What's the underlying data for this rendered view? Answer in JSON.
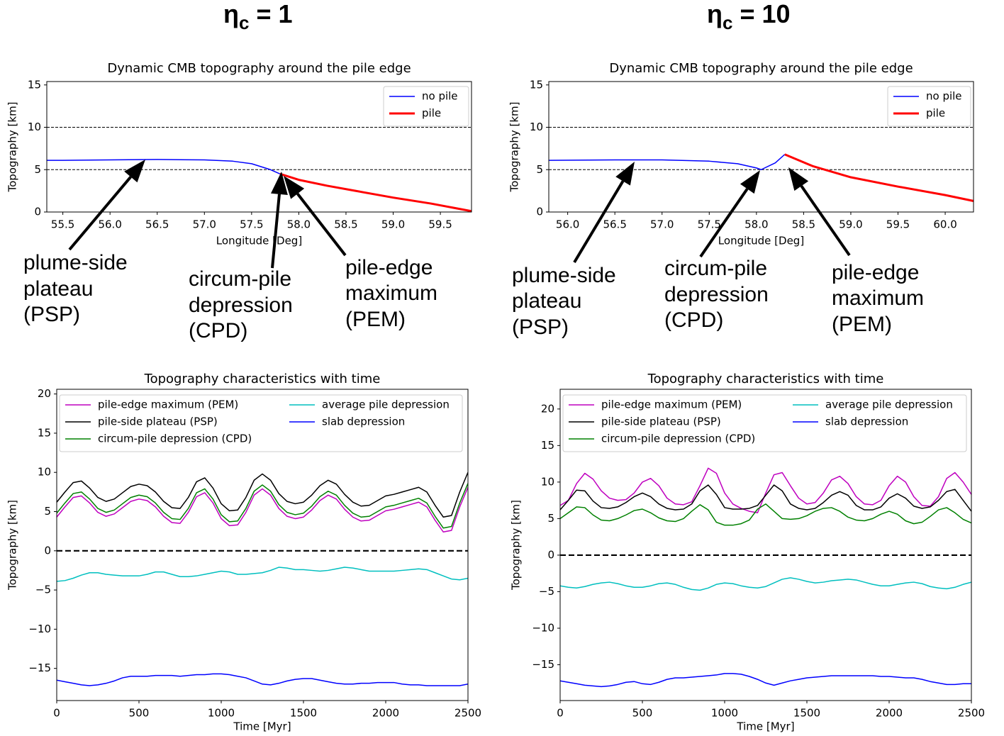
{
  "headers": [
    {
      "symbol": "η",
      "subscript": "c",
      "text": "= 1"
    },
    {
      "symbol": "η",
      "subscript": "c",
      "text": "= 10"
    }
  ],
  "chart_data": [
    {
      "type": "line",
      "title": "Dynamic CMB topography around the pile edge",
      "xlabel": "Longitude [Deg]",
      "ylabel": "Topography [km]",
      "xlim": [
        55.33,
        59.83
      ],
      "ylim": [
        0,
        15.4
      ],
      "xticks": [
        55.5,
        {
          "value": 56,
          "label": "56.0"
        },
        56.5,
        {
          "value": 57,
          "label": "57.0"
        },
        57.5,
        {
          "value": 58,
          "label": "58.0"
        },
        58.5,
        {
          "value": 59,
          "label": "59.0"
        },
        59.5
      ],
      "yticks": [
        0,
        5,
        10,
        15
      ],
      "hlines": [
        5,
        10
      ],
      "legend": "upper right",
      "legend_columns": 1,
      "series": [
        {
          "name": "no pile",
          "color": "#0000ff",
          "x": [
            55.33,
            55.5,
            56.0,
            56.5,
            57.0,
            57.3,
            57.5,
            57.7,
            57.8
          ],
          "values": [
            6.1,
            6.1,
            6.15,
            6.2,
            6.15,
            6.0,
            5.7,
            5.0,
            4.5
          ]
        },
        {
          "name": "pile",
          "color": "#ff0000",
          "x": [
            57.8,
            58.0,
            58.3,
            58.6,
            59.0,
            59.4,
            59.83
          ],
          "values": [
            4.5,
            3.8,
            3.1,
            2.5,
            1.7,
            1.0,
            0.1
          ]
        }
      ],
      "annotations": [
        {
          "text": [
            "plume-side",
            "plateau",
            "(PSP)"
          ],
          "color": "#000000"
        },
        {
          "text": [
            "circum-pile",
            "depression",
            "(CPD)"
          ],
          "color": "#109a30"
        },
        {
          "text": [
            "pile-edge",
            "maximum",
            "(PEM)"
          ],
          "color": "#cc00cc"
        }
      ]
    },
    {
      "type": "line",
      "title": "Dynamic CMB topography around the pile edge",
      "xlabel": "Longitude [Deg]",
      "ylabel": "Topography [km]",
      "xlim": [
        55.8,
        60.3
      ],
      "ylim": [
        0,
        15.4
      ],
      "xticks": [
        {
          "value": 56,
          "label": "56.0"
        },
        56.5,
        {
          "value": 57,
          "label": "57.0"
        },
        57.5,
        {
          "value": 58,
          "label": "58.0"
        },
        58.5,
        {
          "value": 59,
          "label": "59.0"
        },
        59.5,
        {
          "value": 60,
          "label": "60.0"
        }
      ],
      "yticks": [
        0,
        5,
        10,
        15
      ],
      "hlines": [
        5,
        10
      ],
      "legend": "upper right",
      "legend_columns": 1,
      "series": [
        {
          "name": "no pile",
          "color": "#0000ff",
          "x": [
            55.8,
            56.5,
            57.0,
            57.5,
            57.8,
            58.0,
            58.05,
            58.2,
            58.3
          ],
          "values": [
            6.1,
            6.15,
            6.15,
            6.0,
            5.7,
            5.2,
            5.0,
            5.8,
            6.8
          ]
        },
        {
          "name": "pile",
          "color": "#ff0000",
          "x": [
            58.3,
            58.6,
            59.0,
            59.5,
            60.0,
            60.3
          ],
          "values": [
            6.8,
            5.4,
            4.1,
            3.0,
            2.0,
            1.3
          ]
        }
      ],
      "annotations": [
        {
          "text": [
            "plume-side",
            "plateau",
            "(PSP)"
          ],
          "color": "#000000"
        },
        {
          "text": [
            "circum-pile",
            "depression",
            "(CPD)"
          ],
          "color": "#109a30"
        },
        {
          "text": [
            "pile-edge",
            "maximum",
            "(PEM)"
          ],
          "color": "#cc00cc"
        }
      ]
    },
    {
      "type": "line",
      "title": "Topography characteristics with time",
      "xlabel": "Time [Myr]",
      "ylabel": "Topography [km]",
      "xlim": [
        0,
        2500
      ],
      "ylim": [
        -19.1,
        20.6
      ],
      "xticks": [
        0,
        500,
        1000,
        1500,
        2000,
        2500
      ],
      "yticks": [
        {
          "value": -15,
          "label": "−15"
        },
        {
          "value": -10,
          "label": "−10"
        },
        {
          "value": -5,
          "label": "−5"
        },
        0,
        5,
        10,
        15,
        20
      ],
      "hlines": [
        0
      ],
      "legend": "upper left",
      "legend_columns": 2,
      "x": [
        0,
        50,
        100,
        150,
        200,
        250,
        300,
        350,
        400,
        450,
        500,
        550,
        600,
        650,
        700,
        750,
        800,
        850,
        900,
        950,
        1000,
        1050,
        1100,
        1150,
        1200,
        1250,
        1300,
        1350,
        1400,
        1450,
        1500,
        1550,
        1600,
        1650,
        1700,
        1750,
        1800,
        1850,
        1900,
        1950,
        2000,
        2050,
        2100,
        2150,
        2200,
        2250,
        2300,
        2350,
        2400,
        2450,
        2500
      ],
      "series": [
        {
          "name": "pile-edge maximum (PEM)",
          "color": "#bf00bf",
          "values": [
            4.3,
            5.6,
            6.8,
            7.0,
            6.1,
            4.9,
            4.4,
            4.7,
            5.5,
            6.3,
            6.6,
            6.4,
            5.6,
            4.4,
            3.6,
            3.5,
            4.9,
            6.9,
            7.4,
            6.1,
            4.1,
            3.2,
            3.3,
            4.9,
            7.1,
            7.9,
            7.1,
            5.4,
            4.4,
            4.1,
            4.3,
            5.2,
            6.4,
            7.1,
            6.6,
            5.3,
            4.3,
            3.8,
            3.9,
            4.5,
            5.1,
            5.3,
            5.6,
            5.9,
            6.2,
            5.6,
            3.9,
            2.4,
            2.6,
            5.6,
            8.1
          ]
        },
        {
          "name": "pile-side plateau (PSP)",
          "color": "#000000",
          "values": [
            6.2,
            7.5,
            8.7,
            8.9,
            8.0,
            6.8,
            6.3,
            6.6,
            7.4,
            8.2,
            8.5,
            8.3,
            7.5,
            6.3,
            5.5,
            5.4,
            6.8,
            8.8,
            9.3,
            8.0,
            6.0,
            5.1,
            5.2,
            6.8,
            9.0,
            9.8,
            9.0,
            7.3,
            6.3,
            6.0,
            6.2,
            7.1,
            8.3,
            9.0,
            8.5,
            7.2,
            6.2,
            5.7,
            5.8,
            6.4,
            7.0,
            7.2,
            7.5,
            7.8,
            8.1,
            7.5,
            5.8,
            4.3,
            4.5,
            7.5,
            10.0
          ]
        },
        {
          "name": "circum-pile depression (CPD)",
          "color": "#008000",
          "values": [
            4.8,
            6.1,
            7.3,
            7.5,
            6.6,
            5.4,
            4.9,
            5.2,
            6.0,
            6.8,
            7.1,
            6.9,
            6.1,
            4.9,
            4.1,
            4.0,
            5.4,
            7.4,
            7.9,
            6.6,
            4.6,
            3.7,
            3.8,
            5.4,
            7.6,
            8.4,
            7.6,
            5.9,
            4.9,
            4.6,
            4.8,
            5.7,
            6.9,
            7.6,
            7.1,
            5.8,
            4.8,
            4.3,
            4.4,
            5.0,
            5.6,
            5.8,
            6.1,
            6.4,
            6.7,
            6.1,
            4.4,
            2.9,
            3.1,
            6.1,
            8.6
          ]
        },
        {
          "name": "average pile depression",
          "color": "#00bfbf",
          "values": [
            -3.9,
            -3.8,
            -3.5,
            -3.1,
            -2.8,
            -2.8,
            -3.0,
            -3.1,
            -3.2,
            -3.2,
            -3.2,
            -3.0,
            -2.7,
            -2.7,
            -3.0,
            -3.3,
            -3.3,
            -3.2,
            -3.0,
            -2.8,
            -2.6,
            -2.7,
            -3.0,
            -3.0,
            -2.9,
            -2.8,
            -2.5,
            -2.1,
            -2.2,
            -2.4,
            -2.4,
            -2.5,
            -2.6,
            -2.5,
            -2.3,
            -2.1,
            -2.2,
            -2.4,
            -2.6,
            -2.6,
            -2.6,
            -2.6,
            -2.5,
            -2.4,
            -2.3,
            -2.4,
            -2.8,
            -3.2,
            -3.6,
            -3.7,
            -3.5
          ]
        },
        {
          "name": "slab depression",
          "color": "#0000ff",
          "values": [
            -16.5,
            -16.7,
            -16.9,
            -17.1,
            -17.2,
            -17.1,
            -16.9,
            -16.6,
            -16.2,
            -16.0,
            -16.0,
            -16.0,
            -15.9,
            -15.9,
            -15.9,
            -16.0,
            -15.9,
            -15.8,
            -15.8,
            -15.7,
            -15.7,
            -15.8,
            -16.0,
            -16.2,
            -16.6,
            -17.0,
            -17.1,
            -16.9,
            -16.6,
            -16.4,
            -16.3,
            -16.3,
            -16.5,
            -16.7,
            -16.9,
            -17.0,
            -17.0,
            -16.9,
            -16.9,
            -16.8,
            -16.8,
            -16.8,
            -17.0,
            -17.1,
            -17.1,
            -17.2,
            -17.2,
            -17.2,
            -17.2,
            -17.2,
            -17.0
          ]
        }
      ]
    },
    {
      "type": "line",
      "title": "Topography characteristics with time",
      "xlabel": "Time [Myr]",
      "ylabel": "Topography [km]",
      "xlim": [
        0,
        2500
      ],
      "ylim": [
        -19.9,
        22.7
      ],
      "xticks": [
        0,
        500,
        1000,
        1500,
        2000,
        2500
      ],
      "yticks": [
        {
          "value": -15,
          "label": "−15"
        },
        {
          "value": -10,
          "label": "−10"
        },
        {
          "value": -5,
          "label": "−5"
        },
        0,
        5,
        10,
        15,
        20
      ],
      "hlines": [
        0
      ],
      "legend": "upper left",
      "legend_columns": 2,
      "x": [
        0,
        50,
        100,
        150,
        200,
        250,
        300,
        350,
        400,
        450,
        500,
        550,
        600,
        650,
        700,
        750,
        800,
        850,
        900,
        950,
        1000,
        1050,
        1100,
        1150,
        1200,
        1250,
        1300,
        1350,
        1400,
        1450,
        1500,
        1550,
        1600,
        1650,
        1700,
        1750,
        1800,
        1850,
        1900,
        1950,
        2000,
        2050,
        2100,
        2150,
        2200,
        2250,
        2300,
        2350,
        2400,
        2450,
        2500
      ],
      "series": [
        {
          "name": "pile-edge maximum (PEM)",
          "color": "#bf00bf",
          "values": [
            6.8,
            7.5,
            9.8,
            11.2,
            10.4,
            8.8,
            7.8,
            7.5,
            7.6,
            8.5,
            10.0,
            10.5,
            9.5,
            7.8,
            7.0,
            6.9,
            7.3,
            9.5,
            11.9,
            11.2,
            8.5,
            7.0,
            6.4,
            6.0,
            5.8,
            8.5,
            11.0,
            11.3,
            9.5,
            7.8,
            7.0,
            7.2,
            8.5,
            10.3,
            10.8,
            9.8,
            8.0,
            7.0,
            6.9,
            7.5,
            9.5,
            10.8,
            10.0,
            8.0,
            6.8,
            6.7,
            8.0,
            10.5,
            11.3,
            10.0,
            8.3
          ]
        },
        {
          "name": "pile-side plateau (PSP)",
          "color": "#000000",
          "values": [
            6.2,
            7.5,
            8.9,
            8.8,
            7.4,
            6.5,
            6.4,
            6.6,
            7.2,
            8.0,
            8.5,
            8.0,
            7.0,
            6.4,
            6.2,
            6.3,
            7.0,
            8.8,
            9.6,
            8.3,
            6.5,
            6.3,
            6.3,
            6.4,
            6.8,
            8.2,
            9.6,
            8.8,
            7.0,
            6.4,
            6.2,
            6.4,
            7.2,
            8.2,
            8.7,
            8.2,
            6.8,
            6.2,
            6.2,
            6.6,
            7.8,
            8.4,
            7.8,
            6.7,
            6.4,
            6.6,
            7.5,
            8.7,
            9.0,
            7.5,
            6.0
          ]
        },
        {
          "name": "circum-pile depression (CPD)",
          "color": "#008000",
          "values": [
            5.0,
            5.8,
            6.6,
            6.5,
            5.5,
            4.8,
            4.7,
            5.0,
            5.5,
            6.1,
            6.3,
            5.8,
            5.1,
            4.7,
            4.6,
            5.0,
            6.0,
            6.9,
            6.2,
            4.5,
            4.1,
            4.1,
            4.3,
            4.8,
            6.3,
            7.0,
            6.0,
            5.0,
            4.9,
            5.0,
            5.4,
            6.0,
            6.4,
            6.5,
            6.0,
            5.2,
            4.8,
            4.7,
            5.0,
            5.6,
            6.0,
            5.6,
            4.7,
            4.3,
            4.5,
            5.3,
            6.2,
            6.5,
            5.8,
            4.9,
            4.4
          ]
        },
        {
          "name": "average pile depression",
          "color": "#00bfbf",
          "values": [
            -4.2,
            -4.4,
            -4.5,
            -4.3,
            -4.0,
            -3.8,
            -3.7,
            -3.9,
            -4.2,
            -4.4,
            -4.4,
            -4.2,
            -3.9,
            -3.8,
            -4.0,
            -4.4,
            -4.7,
            -4.8,
            -4.5,
            -4.0,
            -3.8,
            -3.9,
            -4.2,
            -4.4,
            -4.5,
            -4.3,
            -3.8,
            -3.3,
            -3.1,
            -3.3,
            -3.6,
            -3.8,
            -3.7,
            -3.5,
            -3.4,
            -3.3,
            -3.4,
            -3.7,
            -4.0,
            -4.2,
            -4.2,
            -4.0,
            -3.8,
            -3.7,
            -3.9,
            -4.3,
            -4.5,
            -4.6,
            -4.4,
            -4.0,
            -3.7
          ]
        },
        {
          "name": "slab depression",
          "color": "#0000ff",
          "values": [
            -17.2,
            -17.4,
            -17.6,
            -17.8,
            -17.9,
            -18.0,
            -17.9,
            -17.7,
            -17.4,
            -17.3,
            -17.6,
            -17.7,
            -17.4,
            -17.0,
            -16.8,
            -16.8,
            -16.7,
            -16.6,
            -16.5,
            -16.4,
            -16.2,
            -16.2,
            -16.3,
            -16.6,
            -17.0,
            -17.5,
            -17.8,
            -17.5,
            -17.2,
            -17.0,
            -16.8,
            -16.7,
            -16.6,
            -16.5,
            -16.5,
            -16.5,
            -16.5,
            -16.5,
            -16.5,
            -16.6,
            -16.6,
            -16.7,
            -16.8,
            -16.8,
            -17.0,
            -17.3,
            -17.5,
            -17.7,
            -17.7,
            -17.6,
            -17.6
          ]
        }
      ]
    }
  ]
}
